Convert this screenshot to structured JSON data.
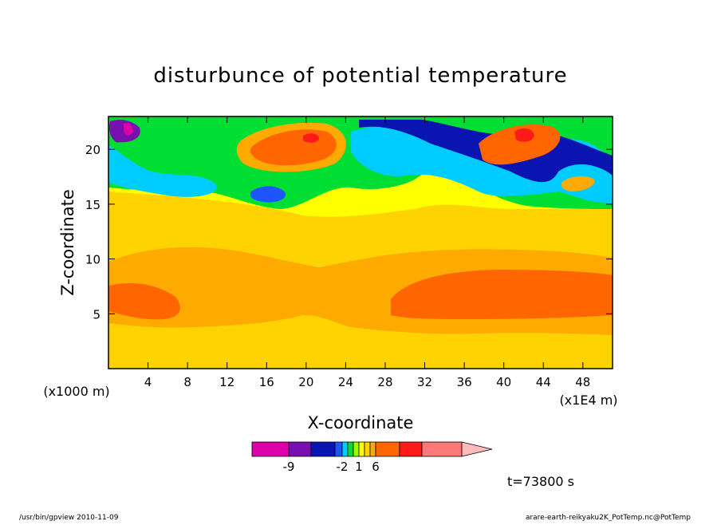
{
  "chart_data": {
    "type": "heatmap",
    "title": "disturbunce of potential temperature",
    "xlabel": "X-coordinate",
    "ylabel": "Z-coordinate",
    "x_unit": "(x1E4 m)",
    "y_unit": "(x1000 m)",
    "xlim": [
      0,
      51
    ],
    "ylim": [
      0,
      23
    ],
    "x_ticks": [
      4,
      8,
      12,
      16,
      20,
      24,
      28,
      32,
      36,
      40,
      44,
      48
    ],
    "y_ticks": [
      5,
      10,
      15,
      20
    ],
    "colorbar": {
      "levels": [
        -12,
        -9,
        -6,
        -3,
        -2,
        -1,
        0,
        1,
        2,
        3,
        6,
        9,
        12
      ],
      "labels": [
        "-9",
        "-2",
        "1",
        "6"
      ],
      "colors": [
        "#dd00aa",
        "#7a0fb0",
        "#0a14b0",
        "#1e55ff",
        "#00ccff",
        "#00dd33",
        "#99ff00",
        "#ffff00",
        "#ffd300",
        "#ffaa00",
        "#ff6600",
        "#ff1a1a",
        "#ff7777",
        "#ffbbbb"
      ]
    },
    "time_label": "t=73800 s"
  },
  "footer": {
    "left": "/usr/bin/gpview 2010-11-09",
    "right": "arare-earth-reikyaku2K_PotTemp.nc@PotTemp"
  }
}
